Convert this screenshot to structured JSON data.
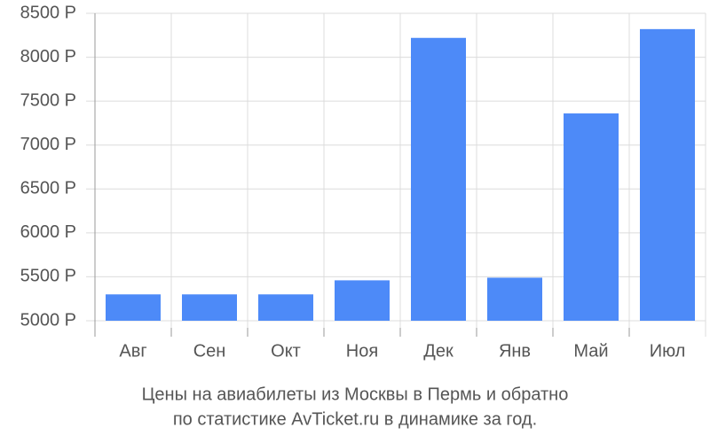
{
  "chart_data": {
    "type": "bar",
    "categories": [
      "Авг",
      "Сен",
      "Окт",
      "Ноя",
      "Дек",
      "Янв",
      "Май",
      "Июл"
    ],
    "values": [
      5300,
      5300,
      5300,
      5460,
      8220,
      5490,
      7360,
      8320
    ],
    "color": "#4d8af8",
    "ylim": [
      5000,
      8500
    ],
    "yticks": [
      {
        "value": 5000,
        "label": "5000 Р"
      },
      {
        "value": 5500,
        "label": "5500 Р"
      },
      {
        "value": 6000,
        "label": "6000 Р"
      },
      {
        "value": 6500,
        "label": "6500 Р"
      },
      {
        "value": 7000,
        "label": "7000 Р"
      },
      {
        "value": 7500,
        "label": "7500 Р"
      },
      {
        "value": 8000,
        "label": "8000 Р"
      },
      {
        "value": 8500,
        "label": "8500 Р"
      }
    ],
    "grid": true,
    "caption": [
      "Цены на авиабилеты из Москвы в Пермь и обратно",
      "по статистике AvTicket.ru в динамике за год."
    ]
  }
}
